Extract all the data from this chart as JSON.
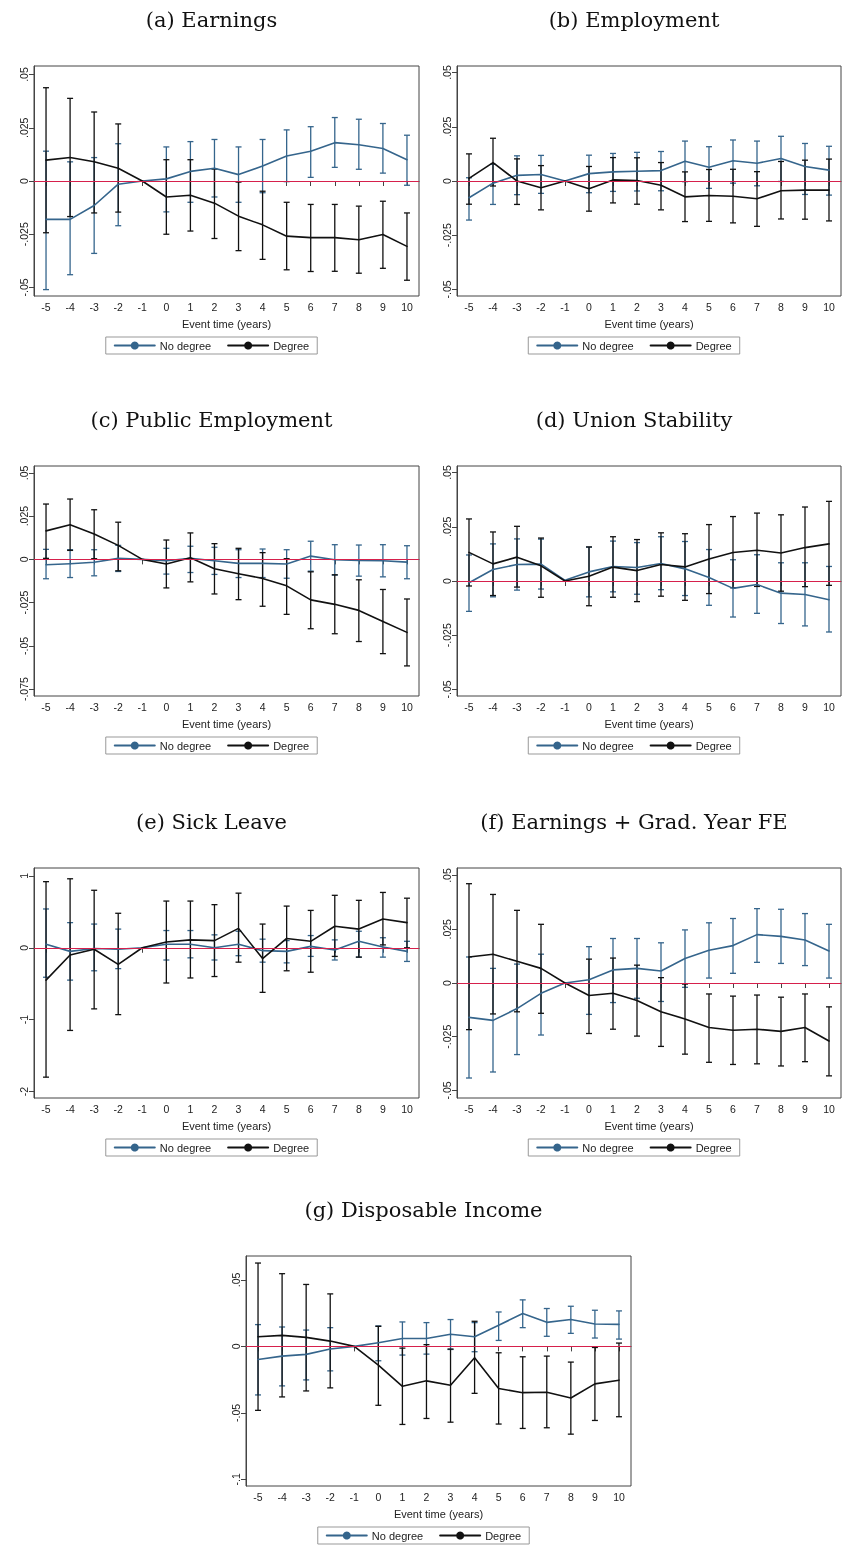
{
  "chart_data": [
    {
      "type": "line",
      "title": "(a) Earnings",
      "xlabel": "Event time (years)",
      "categories": [
        "-5",
        "-4",
        "-3",
        "-2",
        "-1",
        "0",
        "1",
        "2",
        "3",
        "4",
        "5",
        "6",
        "7",
        "8",
        "9",
        "10"
      ],
      "ylim": [
        -0.054,
        0.054
      ],
      "yticks": [
        {
          "value": 0.05,
          "label": ".05"
        },
        {
          "value": 0.025,
          "label": ".025"
        },
        0,
        {
          "value": -0.025,
          "label": "-.025"
        },
        {
          "value": -0.05,
          "label": "-.05"
        }
      ],
      "legend": "bottom",
      "ref_lines": [
        {
          "axis": "y",
          "value": 0,
          "color": "#d6204c"
        }
      ],
      "series": [
        {
          "name": "No degree",
          "color": "#35658c",
          "values": [
            -0.018,
            -0.018,
            -0.0115,
            -0.0015,
            0,
            0.001,
            0.0045,
            0.006,
            0.003,
            0.007,
            0.0117,
            0.014,
            0.018,
            0.017,
            0.0153,
            0.01
          ],
          "errors": [
            [
              -0.051,
              0.014
            ],
            [
              -0.044,
              0.009
            ],
            [
              -0.034,
              0.011
            ],
            [
              -0.021,
              0.0175
            ],
            null,
            [
              -0.0145,
              0.016
            ],
            [
              -0.01,
              0.0185
            ],
            [
              -0.0075,
              0.0195
            ],
            [
              -0.01,
              0.016
            ],
            [
              -0.0055,
              0.0195
            ],
            [
              -0.0003,
              0.024
            ],
            [
              0.0017,
              0.0255
            ],
            [
              0.0064,
              0.0298
            ],
            [
              0.0055,
              0.029
            ],
            [
              0.0037,
              0.027
            ],
            [
              -0.002,
              0.0215
            ]
          ]
        },
        {
          "name": "Degree",
          "color": "#111111",
          "values": [
            0.0098,
            0.011,
            0.009,
            0.006,
            0,
            -0.0075,
            -0.0067,
            -0.0104,
            -0.0165,
            -0.0206,
            -0.0259,
            -0.0266,
            -0.0266,
            -0.0276,
            -0.0251,
            -0.0307
          ],
          "errors": [
            [
              -0.0243,
              0.0438
            ],
            [
              -0.0167,
              0.0388
            ],
            [
              -0.015,
              0.0324
            ],
            [
              -0.0146,
              0.0268
            ],
            null,
            [
              -0.025,
              0.01
            ],
            [
              -0.0235,
              0.01
            ],
            [
              -0.027,
              0.0056
            ],
            [
              -0.0327,
              -0.0005
            ],
            [
              -0.0368,
              -0.0048
            ],
            [
              -0.0417,
              -0.01
            ],
            [
              -0.0425,
              -0.011
            ],
            [
              -0.0424,
              -0.011
            ],
            [
              -0.0433,
              -0.0118
            ],
            [
              -0.041,
              -0.0095
            ],
            [
              -0.0466,
              -0.015
            ]
          ]
        }
      ]
    },
    {
      "type": "line",
      "title": "(b) Employment",
      "xlabel": "Event time (years)",
      "categories": [
        "-5",
        "-4",
        "-3",
        "-2",
        "-1",
        "0",
        "1",
        "2",
        "3",
        "4",
        "5",
        "6",
        "7",
        "8",
        "9",
        "10"
      ],
      "ylim": [
        -0.053,
        0.053
      ],
      "yticks": [
        {
          "value": 0.05,
          "label": ".05"
        },
        {
          "value": 0.025,
          "label": ".025"
        },
        0,
        {
          "value": -0.025,
          "label": "-.025"
        },
        {
          "value": -0.05,
          "label": "-.05"
        }
      ],
      "legend": "bottom",
      "ref_lines": [
        {
          "axis": "y",
          "value": 0,
          "color": "#d6204c"
        }
      ],
      "series": [
        {
          "name": "No degree",
          "color": "#35658c",
          "values": [
            -0.0077,
            -0.001,
            0.0026,
            0.003,
            0,
            0.0034,
            0.0042,
            0.0045,
            0.0048,
            0.0091,
            0.0063,
            0.0093,
            0.0082,
            0.0104,
            0.0067,
            0.005
          ],
          "errors": [
            [
              -0.018,
              0.0015
            ],
            [
              -0.0108,
              0.0077
            ],
            [
              -0.0063,
              0.0116
            ],
            [
              -0.0057,
              0.0118
            ],
            null,
            [
              -0.0054,
              0.0119
            ],
            [
              -0.0048,
              0.0127
            ],
            [
              -0.0046,
              0.0132
            ],
            [
              -0.0045,
              0.0136
            ],
            [
              -0.0003,
              0.0184
            ],
            [
              -0.0034,
              0.0158
            ],
            [
              -0.001,
              0.0189
            ],
            [
              -0.0022,
              0.0184
            ],
            [
              -0.0002,
              0.0206
            ],
            [
              -0.0062,
              0.0173
            ],
            [
              -0.0065,
              0.016
            ]
          ]
        },
        {
          "name": "Degree",
          "color": "#111111",
          "values": [
            0.0012,
            0.0085,
            0,
            -0.0031,
            0,
            -0.0036,
            0.0005,
            0.0002,
            -0.002,
            -0.0073,
            -0.0067,
            -0.007,
            -0.0082,
            -0.0045,
            -0.0042,
            -0.0042
          ],
          "errors": [
            [
              -0.0107,
              0.0125
            ],
            [
              -0.0023,
              0.0197
            ],
            [
              -0.0108,
              0.0102
            ],
            [
              -0.0133,
              0.0071
            ],
            null,
            [
              -0.0139,
              0.0067
            ],
            [
              -0.0101,
              0.0108
            ],
            [
              -0.0107,
              0.0107
            ],
            [
              -0.0133,
              0.0085
            ],
            [
              -0.0187,
              0.0042
            ],
            [
              -0.0186,
              0.0053
            ],
            [
              -0.0193,
              0.0054
            ],
            [
              -0.0209,
              0.0043
            ],
            [
              -0.0175,
              0.009
            ],
            [
              -0.0176,
              0.0096
            ],
            [
              -0.0184,
              0.0101
            ]
          ]
        }
      ]
    },
    {
      "type": "line",
      "title": "(c) Public Employment",
      "xlabel": "Event time (years)",
      "categories": [
        "-5",
        "-4",
        "-3",
        "-2",
        "-1",
        "0",
        "1",
        "2",
        "3",
        "4",
        "5",
        "6",
        "7",
        "8",
        "9",
        "10"
      ],
      "ylim": [
        -0.079,
        0.054
      ],
      "yticks": [
        {
          "value": 0.05,
          "label": ".05"
        },
        {
          "value": 0.025,
          "label": ".025"
        },
        0,
        {
          "value": -0.025,
          "label": "-.025"
        },
        {
          "value": -0.05,
          "label": "-.05"
        },
        {
          "value": -0.075,
          "label": "-.075"
        }
      ],
      "legend": "bottom",
      "ref_lines": [
        {
          "axis": "y",
          "value": 0,
          "color": "#d6204c"
        }
      ],
      "series": [
        {
          "name": "No degree",
          "color": "#35658c",
          "values": [
            -0.0031,
            -0.0025,
            -0.0017,
            0.0006,
            0,
            -0.0008,
            0.0006,
            -0.0008,
            -0.0023,
            -0.0023,
            -0.0027,
            0.0019,
            -0.0002,
            -0.0006,
            -0.0008,
            -0.0016
          ],
          "errors": [
            [
              -0.0112,
              0.0058
            ],
            [
              -0.0105,
              0.0056
            ],
            [
              -0.0095,
              0.0056
            ],
            [
              -0.007,
              0.0081
            ],
            null,
            [
              -0.0085,
              0.0064
            ],
            [
              -0.0076,
              0.0076
            ],
            [
              -0.0087,
              0.007
            ],
            [
              -0.0105,
              0.0056
            ],
            [
              -0.0105,
              0.006
            ],
            [
              -0.0109,
              0.0056
            ],
            [
              -0.0068,
              0.0105
            ],
            [
              -0.0091,
              0.0085
            ],
            [
              -0.0097,
              0.0083
            ],
            [
              -0.0101,
              0.0085
            ],
            [
              -0.0112,
              0.0079
            ]
          ]
        },
        {
          "name": "Degree",
          "color": "#111111",
          "values": [
            0.0165,
            0.02,
            0.0147,
            0.0081,
            0,
            -0.0027,
            0.001,
            -0.0054,
            -0.0083,
            -0.011,
            -0.0153,
            -0.0234,
            -0.026,
            -0.0295,
            -0.0359,
            -0.0422
          ],
          "errors": [
            [
              0.0006,
              0.032
            ],
            [
              0.0052,
              0.0349
            ],
            [
              0.0004,
              0.0287
            ],
            [
              -0.0066,
              0.0215
            ],
            null,
            [
              -0.0165,
              0.0112
            ],
            [
              -0.013,
              0.0153
            ],
            [
              -0.02,
              0.0091
            ],
            [
              -0.0233,
              0.0064
            ],
            [
              -0.0271,
              0.0039
            ],
            [
              -0.0318,
              0.0004
            ],
            [
              -0.0401,
              -0.0072
            ],
            [
              -0.043,
              -0.0089
            ],
            [
              -0.0475,
              -0.0118
            ],
            [
              -0.0545,
              -0.0174
            ],
            [
              -0.0616,
              -0.0229
            ]
          ]
        }
      ]
    },
    {
      "type": "line",
      "title": "(d) Union Stability",
      "xlabel": "Event time (years)",
      "categories": [
        "-5",
        "-4",
        "-3",
        "-2",
        "-1",
        "0",
        "1",
        "2",
        "3",
        "4",
        "5",
        "6",
        "7",
        "8",
        "9",
        "10"
      ],
      "ylim": [
        -0.053,
        0.053
      ],
      "yticks": [
        {
          "value": 0.05,
          "label": ".05"
        },
        {
          "value": 0.025,
          "label": ".025"
        },
        0,
        {
          "value": -0.025,
          "label": "-.025"
        },
        {
          "value": -0.05,
          "label": "-.05"
        }
      ],
      "legend": "bottom",
      "ref_lines": [
        {
          "axis": "y",
          "value": 0,
          "color": "#d6204c"
        }
      ],
      "series": [
        {
          "name": "No degree",
          "color": "#35658c",
          "values": [
            -0.0008,
            0.0053,
            0.0076,
            0.0078,
            0.0003,
            0.0042,
            0.0067,
            0.0062,
            0.0081,
            0.0056,
            0.0016,
            -0.0034,
            -0.0016,
            -0.0056,
            -0.0062,
            -0.0086
          ],
          "errors": [
            [
              -0.014,
              0.012
            ],
            [
              -0.0073,
              0.0171
            ],
            [
              -0.0042,
              0.0194
            ],
            [
              -0.0037,
              0.0193
            ],
            null,
            [
              -0.0073,
              0.0156
            ],
            [
              -0.005,
              0.0184
            ],
            [
              -0.0061,
              0.0177
            ],
            [
              -0.004,
              0.0204
            ],
            [
              -0.0067,
              0.0182
            ],
            [
              -0.0112,
              0.0145
            ],
            [
              -0.0166,
              0.0098
            ],
            [
              -0.0149,
              0.0121
            ],
            [
              -0.0196,
              0.0084
            ],
            [
              -0.0207,
              0.0084
            ],
            [
              -0.0235,
              0.0067
            ]
          ]
        },
        {
          "name": "Degree",
          "color": "#111111",
          "values": [
            0.0132,
            0.0079,
            0.011,
            0.007,
            0,
            0.0022,
            0.0064,
            0.0048,
            0.0076,
            0.0065,
            0.0101,
            0.0131,
            0.0142,
            0.0129,
            0.0154,
            0.0171
          ],
          "errors": [
            [
              -0.0023,
              0.0286
            ],
            [
              -0.0067,
              0.0226
            ],
            [
              -0.0028,
              0.0252
            ],
            [
              -0.0075,
              0.0198
            ],
            null,
            [
              -0.0114,
              0.0157
            ],
            [
              -0.0075,
              0.0204
            ],
            [
              -0.0095,
              0.0191
            ],
            [
              -0.007,
              0.0222
            ],
            [
              -0.0089,
              0.0218
            ],
            [
              -0.0058,
              0.026
            ],
            [
              -0.0031,
              0.0297
            ],
            [
              -0.0025,
              0.0313
            ],
            [
              -0.0047,
              0.0305
            ],
            [
              -0.0026,
              0.0341
            ],
            [
              -0.002,
              0.0367
            ]
          ]
        }
      ]
    },
    {
      "type": "line",
      "title": "(e) Sick Leave",
      "xlabel": "Event time (years)",
      "categories": [
        "-5",
        "-4",
        "-3",
        "-2",
        "-1",
        "0",
        "1",
        "2",
        "3",
        "4",
        "5",
        "6",
        "7",
        "8",
        "9",
        "10"
      ],
      "ylim": [
        -2.09,
        1.11
      ],
      "yticks": [
        1,
        0,
        -1,
        -2
      ],
      "legend": "bottom",
      "ref_lines": [
        {
          "axis": "y",
          "value": 0,
          "color": "#d6204c"
        }
      ],
      "series": [
        {
          "name": "No degree",
          "color": "#35658c",
          "values": [
            0.05,
            -0.05,
            -0.01,
            -0.02,
            0,
            0.05,
            0.05,
            0,
            0.05,
            -0.04,
            -0.05,
            0.02,
            -0.03,
            0.09,
            0.01,
            -0.05
          ],
          "errors": [
            [
              -0.41,
              0.54
            ],
            [
              -0.45,
              0.35
            ],
            [
              -0.32,
              0.33
            ],
            [
              -0.29,
              0.26
            ],
            null,
            [
              -0.17,
              0.24
            ],
            [
              -0.14,
              0.24
            ],
            [
              -0.17,
              0.18
            ],
            [
              -0.11,
              0.23
            ],
            [
              -0.2,
              0.12
            ],
            [
              -0.21,
              0.1
            ],
            [
              -0.12,
              0.17
            ],
            [
              -0.17,
              0.11
            ],
            [
              -0.13,
              0.23
            ],
            [
              -0.13,
              0.14
            ],
            [
              -0.19,
              0.09
            ]
          ]
        },
        {
          "name": "Degree",
          "color": "#111111",
          "values": [
            -0.45,
            -0.1,
            -0.02,
            -0.23,
            0,
            0.08,
            0.11,
            0.1,
            0.27,
            -0.15,
            0.13,
            0.09,
            0.3,
            0.26,
            0.4,
            0.35
          ],
          "errors": [
            [
              -1.8,
              0.92
            ],
            [
              -1.15,
              0.96
            ],
            [
              -0.85,
              0.8
            ],
            [
              -0.93,
              0.48
            ],
            null,
            [
              -0.49,
              0.65
            ],
            [
              -0.42,
              0.65
            ],
            [
              -0.4,
              0.6
            ],
            [
              -0.2,
              0.76
            ],
            [
              -0.62,
              0.33
            ],
            [
              -0.32,
              0.58
            ],
            [
              -0.34,
              0.52
            ],
            [
              -0.12,
              0.73
            ],
            [
              -0.13,
              0.66
            ],
            [
              0.04,
              0.77
            ],
            [
              0,
              0.69
            ]
          ]
        }
      ]
    },
    {
      "type": "line",
      "title": "(f) Earnings + Grad. Year FE",
      "xlabel": "Event time (years)",
      "categories": [
        "-5",
        "-4",
        "-3",
        "-2",
        "-1",
        "0",
        "1",
        "2",
        "3",
        "4",
        "5",
        "6",
        "7",
        "8",
        "9",
        "10"
      ],
      "ylim": [
        -0.0535,
        0.0535
      ],
      "yticks": [
        {
          "value": 0.05,
          "label": ".05"
        },
        {
          "value": 0.025,
          "label": ".025"
        },
        0,
        {
          "value": -0.025,
          "label": "-.025"
        },
        {
          "value": -0.05,
          "label": "-.05"
        }
      ],
      "legend": "bottom",
      "ref_lines": [
        {
          "axis": "y",
          "value": 0,
          "color": "#d6204c"
        }
      ],
      "series": [
        {
          "name": "No degree",
          "color": "#35658c",
          "values": [
            -0.016,
            -0.0174,
            -0.0119,
            -0.0048,
            0,
            0.0015,
            0.0061,
            0.0068,
            0.0056,
            0.0114,
            0.0152,
            0.0174,
            0.0225,
            0.0217,
            0.02,
            0.0149
          ],
          "errors": [
            [
              -0.0442,
              0.0121
            ],
            [
              -0.0414,
              0.0068
            ],
            [
              -0.0333,
              0.0088
            ],
            [
              -0.0242,
              0.0134
            ],
            null,
            [
              -0.0146,
              0.0169
            ],
            [
              -0.0091,
              0.0207
            ],
            [
              -0.0071,
              0.0207
            ],
            [
              -0.0086,
              0.0187
            ],
            [
              -0.002,
              0.0247
            ],
            [
              0.0023,
              0.028
            ],
            [
              0.0045,
              0.03
            ],
            [
              0.0096,
              0.0346
            ],
            [
              0.0091,
              0.0343
            ],
            [
              0.0081,
              0.0323
            ],
            [
              0.0023,
              0.0273
            ]
          ]
        },
        {
          "name": "Degree",
          "color": "#111111",
          "values": [
            0.0121,
            0.0134,
            0.0101,
            0.0068,
            0,
            -0.0058,
            -0.0048,
            -0.0081,
            -0.0134,
            -0.0167,
            -0.0207,
            -0.022,
            -0.0215,
            -0.0225,
            -0.0207,
            -0.027
          ],
          "errors": [
            [
              -0.0217,
              0.0462
            ],
            [
              -0.0144,
              0.0412
            ],
            [
              -0.0134,
              0.0338
            ],
            [
              -0.0141,
              0.0273
            ],
            null,
            [
              -0.0235,
              0.0111
            ],
            [
              -0.0215,
              0.0116
            ],
            [
              -0.0247,
              0.0083
            ],
            [
              -0.0295,
              0.0025
            ],
            [
              -0.0331,
              -0.0005
            ],
            [
              -0.0369,
              -0.0051
            ],
            [
              -0.0379,
              -0.0061
            ],
            [
              -0.0376,
              -0.0056
            ],
            [
              -0.0386,
              -0.0066
            ],
            [
              -0.0366,
              -0.0051
            ],
            [
              -0.0432,
              -0.0111
            ]
          ]
        }
      ]
    },
    {
      "type": "line",
      "title": "(g) Disposable Income",
      "xlabel": "Event time (years)",
      "categories": [
        "-5",
        "-4",
        "-3",
        "-2",
        "-1",
        "0",
        "1",
        "2",
        "3",
        "4",
        "5",
        "6",
        "7",
        "8",
        "9",
        "10"
      ],
      "ylim": [
        -0.105,
        0.068
      ],
      "yticks": [
        {
          "value": 0.05,
          "label": ".05"
        },
        0,
        {
          "value": -0.05,
          "label": "-.05"
        },
        {
          "value": -0.1,
          "label": "-.1"
        }
      ],
      "legend": "bottom",
      "ref_lines": [
        {
          "axis": "y",
          "value": 0,
          "color": "#d6204c"
        }
      ],
      "series": [
        {
          "name": "No degree",
          "color": "#35658c",
          "values": [
            -0.0098,
            -0.0073,
            -0.006,
            -0.002,
            0,
            0.0028,
            0.006,
            0.006,
            0.0091,
            0.0073,
            0.0159,
            0.0247,
            0.0181,
            0.0202,
            0.0169,
            0.0166
          ],
          "errors": [
            [
              -0.0365,
              0.0164
            ],
            [
              -0.0297,
              0.0146
            ],
            [
              -0.0252,
              0.0123
            ],
            [
              -0.0184,
              0.0141
            ],
            null,
            [
              -0.0108,
              0.0154
            ],
            [
              -0.0065,
              0.0184
            ],
            [
              -0.0058,
              0.0179
            ],
            [
              -0.0023,
              0.0202
            ],
            [
              -0.004,
              0.0179
            ],
            [
              0.0045,
              0.0259
            ],
            [
              0.0141,
              0.035
            ],
            [
              0.0076,
              0.0285
            ],
            [
              0.0098,
              0.0302
            ],
            [
              0.0063,
              0.0272
            ],
            [
              0.0055,
              0.0267
            ]
          ]
        },
        {
          "name": "Degree",
          "color": "#111111",
          "values": [
            0.0073,
            0.0083,
            0.0068,
            0.004,
            0,
            -0.0141,
            -0.03,
            -0.0259,
            -0.0292,
            -0.0086,
            -0.0317,
            -0.0348,
            -0.0345,
            -0.0388,
            -0.0282,
            -0.0254
          ],
          "errors": [
            [
              -0.0481,
              0.0627
            ],
            [
              -0.038,
              0.0547
            ],
            [
              -0.0335,
              0.0466
            ],
            [
              -0.0312,
              0.0395
            ],
            null,
            [
              -0.0443,
              0.0151
            ],
            [
              -0.0587,
              -0.0013
            ],
            [
              -0.0542,
              0.0013
            ],
            [
              -0.057,
              -0.002
            ],
            [
              -0.0353,
              0.0189
            ],
            [
              -0.0584,
              -0.0048
            ],
            [
              -0.0617,
              -0.0078
            ],
            [
              -0.0612,
              -0.0073
            ],
            [
              -0.066,
              -0.0118
            ],
            [
              -0.0557,
              -0.0008
            ],
            [
              -0.0529,
              0.0025
            ]
          ]
        }
      ]
    }
  ]
}
